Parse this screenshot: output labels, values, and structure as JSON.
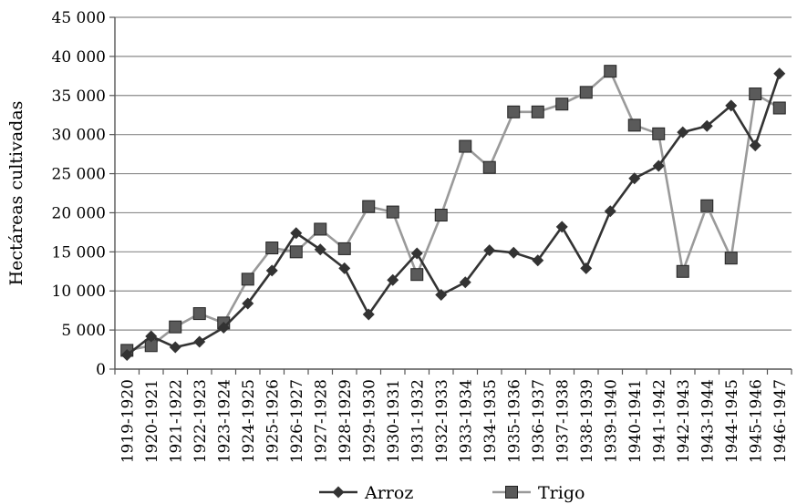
{
  "chart_data": {
    "type": "line",
    "title": "",
    "xlabel": "",
    "ylabel": "Hectáreas cultivadas",
    "ylim": [
      0,
      45000
    ],
    "yticks": [
      0,
      5000,
      10000,
      15000,
      20000,
      25000,
      30000,
      35000,
      40000,
      45000
    ],
    "ytick_labels": [
      "0",
      "5 000",
      "10 000",
      "15 000",
      "20 000",
      "25 000",
      "30 000",
      "35 000",
      "40 000",
      "45 000"
    ],
    "grid": "horizontal",
    "legend_position": "bottom",
    "categories": [
      "1919-1920",
      "1920-1921",
      "1921-1922",
      "1922-1923",
      "1923-1924",
      "1924-1925",
      "1925-1926",
      "1926-1927",
      "1927-1928",
      "1928-1929",
      "1929-1930",
      "1930-1931",
      "1931-1932",
      "1932-1933",
      "1933-1934",
      "1934-1935",
      "1935-1936",
      "1936-1937",
      "1937-1938",
      "1938-1939",
      "1939-1940",
      "1940-1941",
      "1941-1942",
      "1942-1943",
      "1943-1944",
      "1944-1945",
      "1945-1946",
      "1946-1947"
    ],
    "series": [
      {
        "name": "Arroz",
        "marker": "diamond",
        "color": "#333333",
        "values": [
          1800,
          4200,
          2800,
          3500,
          5300,
          8400,
          12600,
          17400,
          15300,
          12900,
          7000,
          11400,
          14800,
          9500,
          11100,
          15200,
          14900,
          13900,
          18200,
          12900,
          20200,
          24400,
          26000,
          30300,
          31100,
          33700,
          28600,
          37800
        ]
      },
      {
        "name": "Trigo",
        "marker": "square",
        "color": "#9a9a9a",
        "values": [
          2400,
          3000,
          5400,
          7100,
          5900,
          11500,
          15500,
          15000,
          17900,
          15400,
          20800,
          20100,
          12100,
          19700,
          28500,
          25800,
          32900,
          32900,
          33900,
          35400,
          38100,
          31200,
          30100,
          12500,
          20900,
          14200,
          35200,
          33400
        ]
      }
    ]
  }
}
